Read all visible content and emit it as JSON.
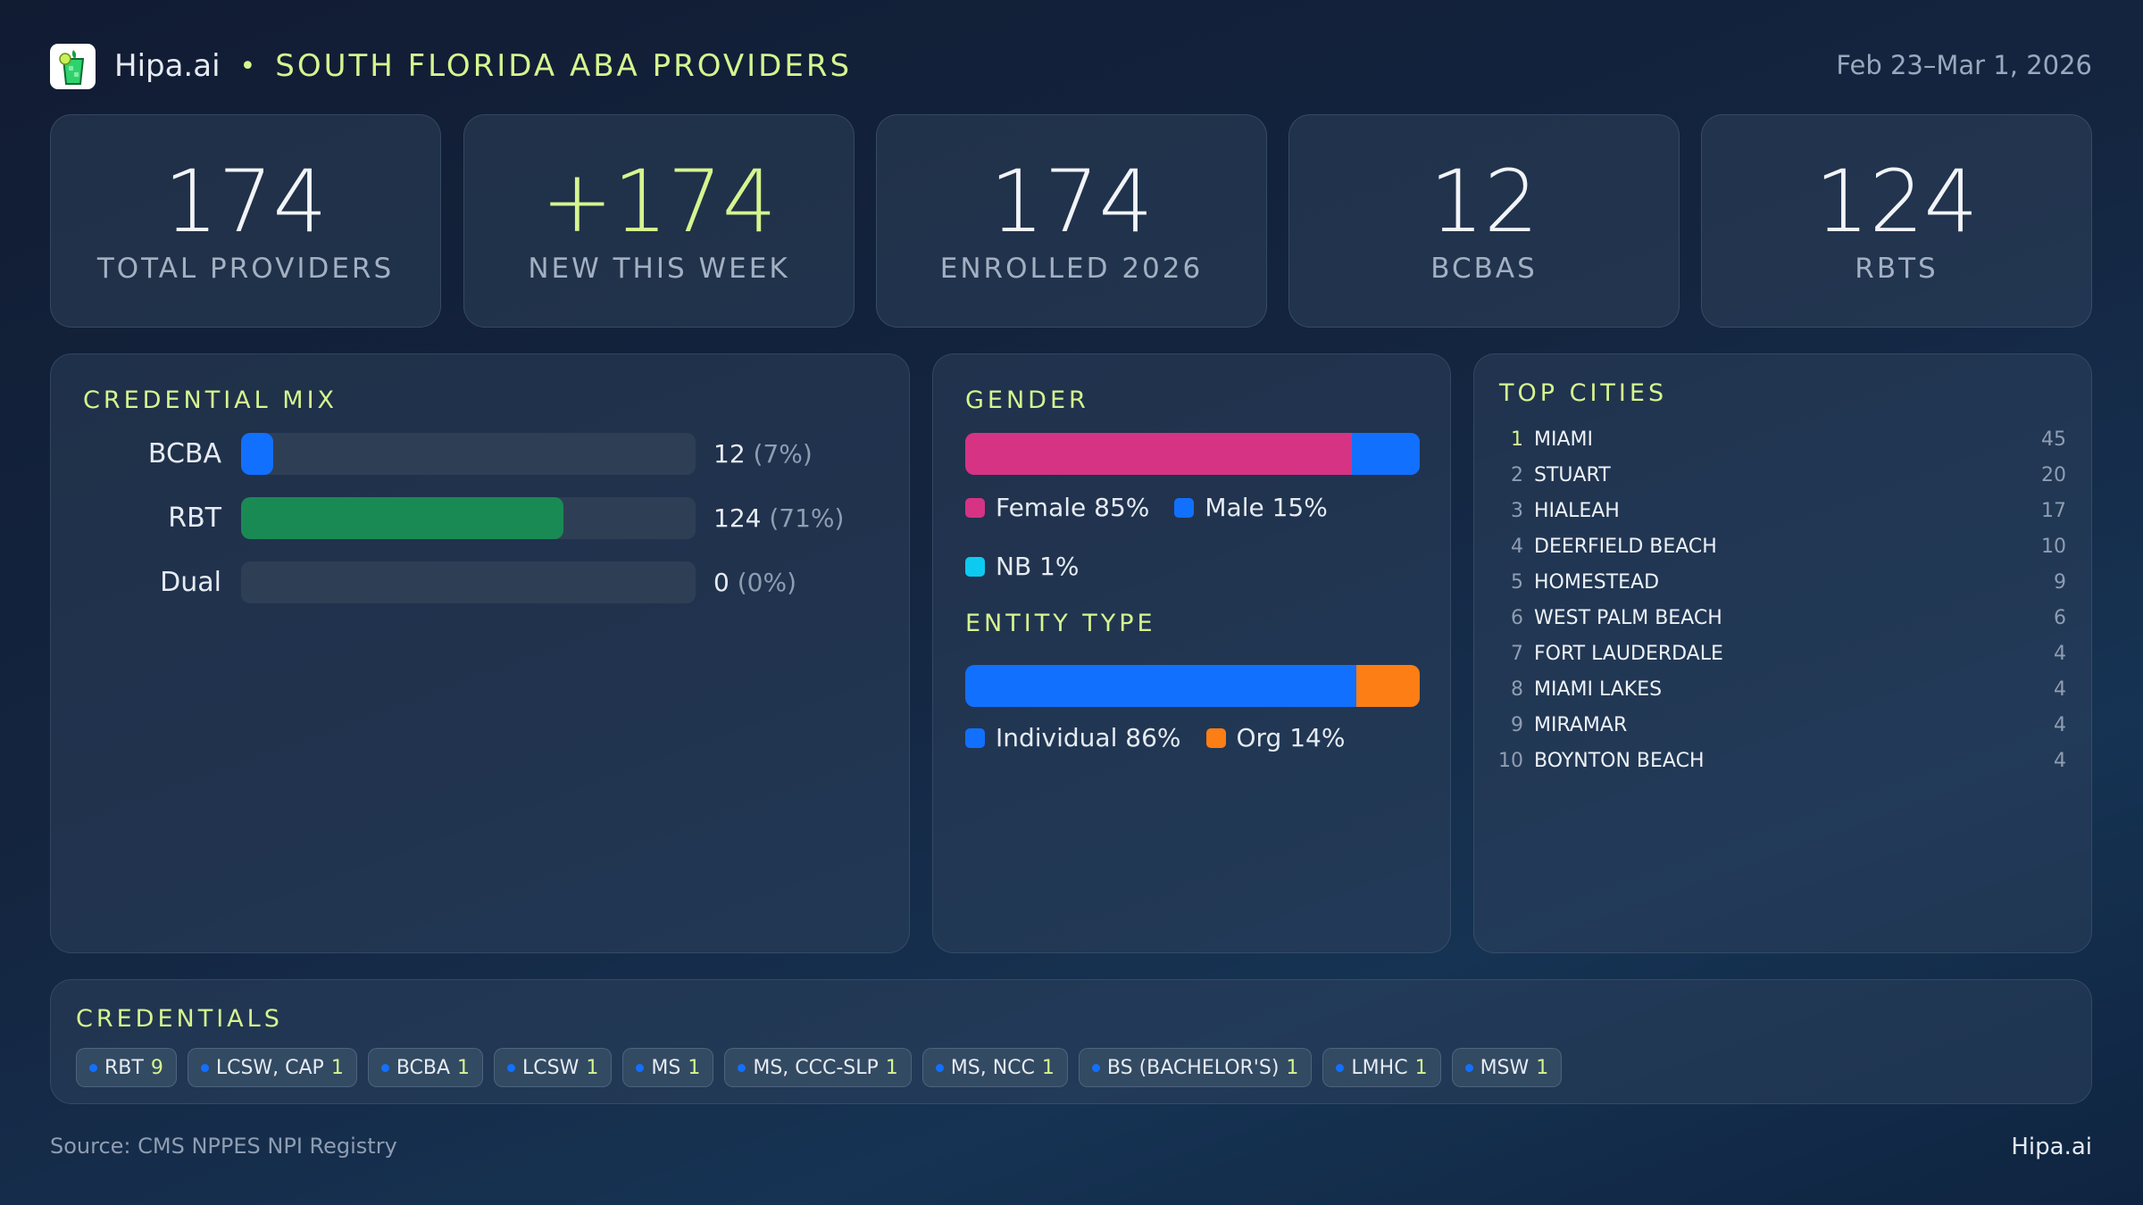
{
  "header": {
    "brand": "Hipa.ai",
    "separator": "•",
    "title": "SOUTH FLORIDA ABA PROVIDERS",
    "date_range": "Feb 23–Mar 1, 2026",
    "logo_icon": "mojito-glass-icon"
  },
  "kpis": [
    {
      "value": "174",
      "label": "TOTAL PROVIDERS"
    },
    {
      "value": "+174",
      "label": "NEW THIS WEEK"
    },
    {
      "value": "174",
      "label": "ENROLLED 2026"
    },
    {
      "value": "12",
      "label": "BCBAS"
    },
    {
      "value": "124",
      "label": "RBTS"
    }
  ],
  "credential_mix": {
    "title": "CREDENTIAL MIX",
    "rows": [
      {
        "label": "BCBA",
        "count": "12",
        "pct_text": "(7%)",
        "pct": 7,
        "color": "#1270ff"
      },
      {
        "label": "RBT",
        "count": "124",
        "pct_text": "(71%)",
        "pct": 71,
        "color": "#1a8a55"
      },
      {
        "label": "Dual",
        "count": "0",
        "pct_text": "(0%)",
        "pct": 0,
        "color": "#1270ff"
      }
    ]
  },
  "gender": {
    "title": "GENDER",
    "segments": [
      {
        "label": "Female 85%",
        "pct": 85,
        "color": "#d63384"
      },
      {
        "label": "Male 15%",
        "pct": 15,
        "color": "#1270ff"
      },
      {
        "label": "NB 1%",
        "pct": 1,
        "color": "#0dcaf0"
      }
    ]
  },
  "entity_type": {
    "title": "ENTITY TYPE",
    "segments": [
      {
        "label": "Individual 86%",
        "pct": 86,
        "color": "#1270ff"
      },
      {
        "label": "Org 14%",
        "pct": 14,
        "color": "#fd7e14"
      }
    ]
  },
  "top_cities": {
    "title": "TOP CITIES",
    "items": [
      {
        "rank": "1",
        "name": "MIAMI",
        "count": "45"
      },
      {
        "rank": "2",
        "name": "STUART",
        "count": "20"
      },
      {
        "rank": "3",
        "name": "HIALEAH",
        "count": "17"
      },
      {
        "rank": "4",
        "name": "DEERFIELD BEACH",
        "count": "10"
      },
      {
        "rank": "5",
        "name": "HOMESTEAD",
        "count": "9"
      },
      {
        "rank": "6",
        "name": "WEST PALM BEACH",
        "count": "6"
      },
      {
        "rank": "7",
        "name": "FORT LAUDERDALE",
        "count": "4"
      },
      {
        "rank": "8",
        "name": "MIAMI LAKES",
        "count": "4"
      },
      {
        "rank": "9",
        "name": "MIRAMAR",
        "count": "4"
      },
      {
        "rank": "10",
        "name": "BOYNTON BEACH",
        "count": "4"
      }
    ]
  },
  "credentials": {
    "title": "CREDENTIALS",
    "chips": [
      {
        "label": "RBT",
        "count": "9"
      },
      {
        "label": "LCSW, CAP",
        "count": "1"
      },
      {
        "label": "BCBA",
        "count": "1"
      },
      {
        "label": "LCSW",
        "count": "1"
      },
      {
        "label": "MS",
        "count": "1"
      },
      {
        "label": "MS, CCC-SLP",
        "count": "1"
      },
      {
        "label": "MS, NCC",
        "count": "1"
      },
      {
        "label": "BS (BACHELOR'S)",
        "count": "1"
      },
      {
        "label": "LMHC",
        "count": "1"
      },
      {
        "label": "MSW",
        "count": "1"
      }
    ]
  },
  "footer": {
    "source": "Source: CMS NPPES NPI Registry",
    "brand": "Hipa.ai"
  }
}
